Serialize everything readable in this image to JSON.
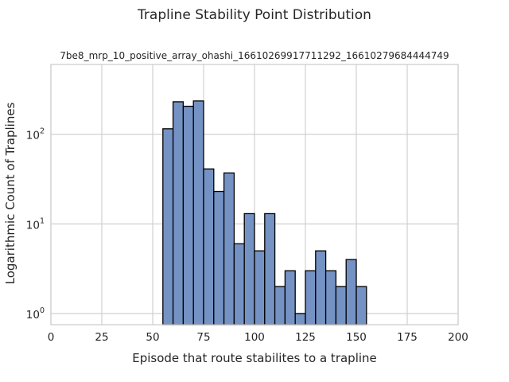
{
  "chart_data": {
    "type": "bar",
    "suptitle": "Trapline Stability Point Distribution",
    "title": "7be8_mrp_10_positive_array_ohashi_16610269917711292_16610279684444749",
    "xlabel": "Episode that route stabilites to a trapline",
    "ylabel": "Logarithmic Count of Traplines",
    "xlim": [
      0,
      200
    ],
    "ylim": [
      0.75,
      600
    ],
    "yscale": "log",
    "bin_width": 5,
    "xticks": [
      0,
      25,
      50,
      75,
      100,
      125,
      150,
      175,
      200
    ],
    "yticks": [
      {
        "value": 1,
        "base": "10",
        "exp": "0"
      },
      {
        "value": 10,
        "base": "10",
        "exp": "1"
      },
      {
        "value": 100,
        "base": "10",
        "exp": "2"
      }
    ],
    "grid": true,
    "bar_color": "#7592c4",
    "edge_color": "#000000",
    "bins": [
      {
        "start": 55,
        "count": 115
      },
      {
        "start": 60,
        "count": 230
      },
      {
        "start": 65,
        "count": 205
      },
      {
        "start": 70,
        "count": 235
      },
      {
        "start": 75,
        "count": 41
      },
      {
        "start": 80,
        "count": 23
      },
      {
        "start": 85,
        "count": 37
      },
      {
        "start": 90,
        "count": 6
      },
      {
        "start": 95,
        "count": 13
      },
      {
        "start": 100,
        "count": 5
      },
      {
        "start": 105,
        "count": 13
      },
      {
        "start": 110,
        "count": 2
      },
      {
        "start": 115,
        "count": 3
      },
      {
        "start": 120,
        "count": 1
      },
      {
        "start": 125,
        "count": 3
      },
      {
        "start": 130,
        "count": 5
      },
      {
        "start": 135,
        "count": 3
      },
      {
        "start": 140,
        "count": 2
      },
      {
        "start": 145,
        "count": 4
      },
      {
        "start": 150,
        "count": 2
      }
    ]
  }
}
